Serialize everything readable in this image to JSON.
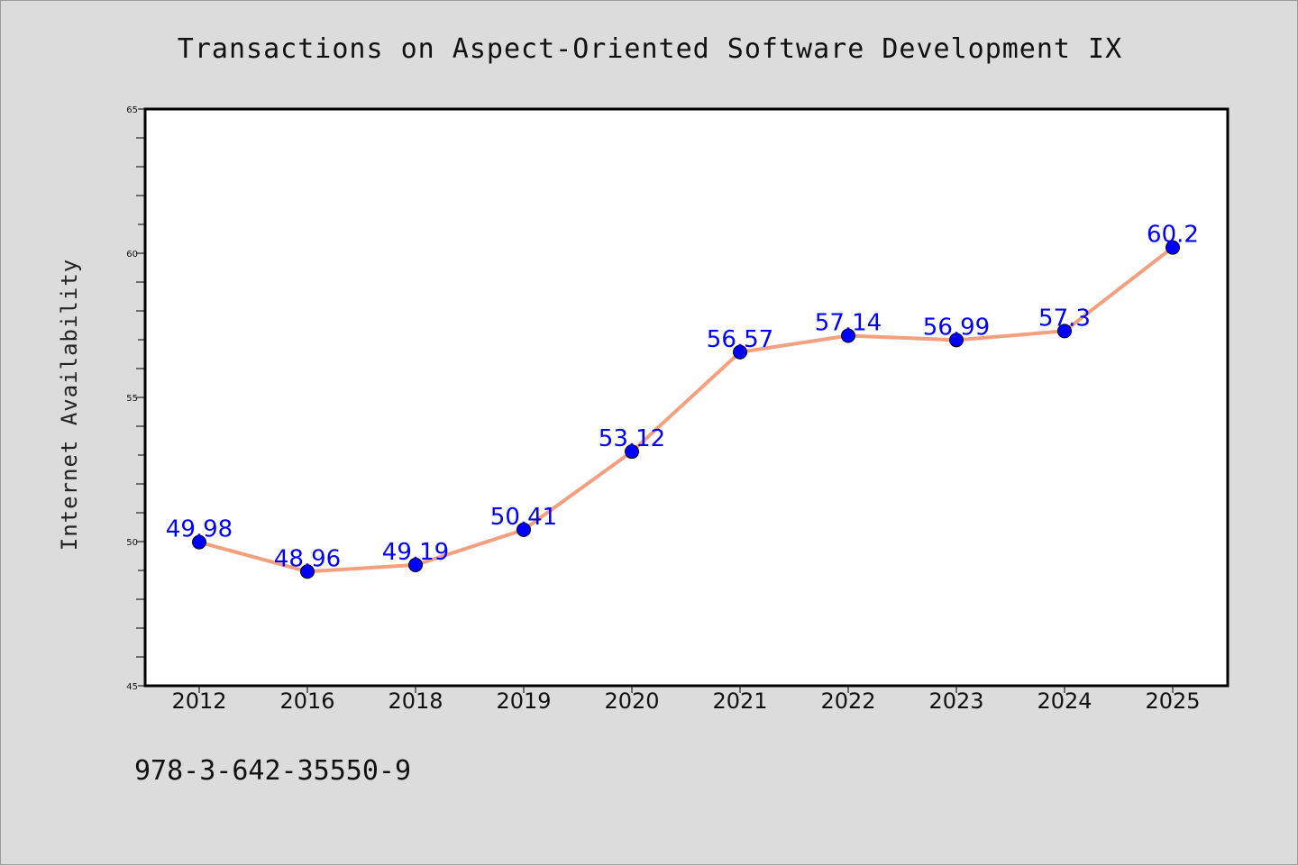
{
  "chart_data": {
    "type": "line",
    "title": "Transactions on Aspect-Oriented Software Development IX",
    "xlabel": "",
    "ylabel": "Internet Availability",
    "categories": [
      "2012",
      "2016",
      "2018",
      "2019",
      "2020",
      "2021",
      "2022",
      "2023",
      "2024",
      "2025"
    ],
    "series": [
      {
        "values": [
          49.98,
          48.96,
          49.19,
          50.41,
          53.12,
          56.57,
          57.14,
          56.99,
          57.3,
          60.2
        ],
        "line_color": "#f4a07f",
        "marker_color": "#0000ff"
      }
    ],
    "data_labels": [
      "49.98",
      "48.96",
      "49.19",
      "50.41",
      "53.12",
      "56.57",
      "57.14",
      "56.99",
      "57.3",
      "60.2"
    ],
    "ylim": [
      45,
      65
    ],
    "yticks": [
      45,
      50,
      55,
      60,
      65
    ],
    "ytick_labels": [
      "45",
      "50",
      "55",
      "60",
      "65"
    ],
    "grid": false,
    "legend": "none"
  },
  "footer": {
    "isbn": "978-3-642-35550-9"
  },
  "colors": {
    "background": "#dcdcdc",
    "plot_background": "#ffffff",
    "axis": "#000000",
    "data_label": "#0000ff"
  }
}
